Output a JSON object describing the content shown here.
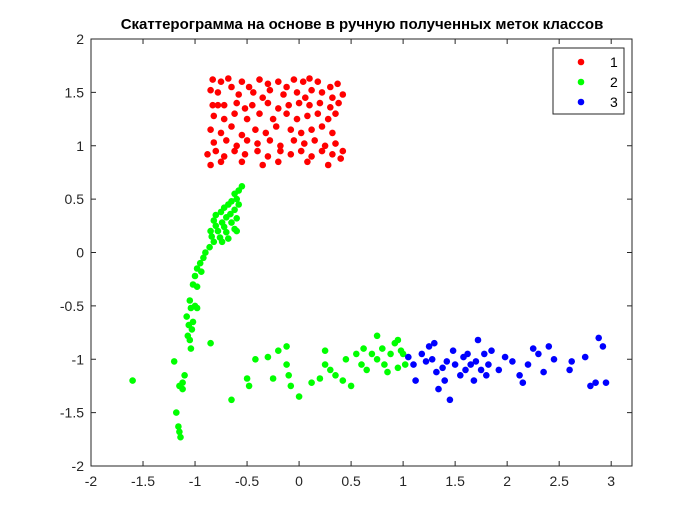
{
  "chart_data": {
    "type": "scatter",
    "title": "Скаттерограмма на основе в ручную полученных меток классов",
    "xlabel": "",
    "ylabel": "",
    "xlim": [
      -2,
      3.2
    ],
    "ylim": [
      -2,
      2
    ],
    "xticks": [
      -2,
      -1.5,
      -1,
      -0.5,
      0,
      0.5,
      1,
      1.5,
      2,
      2.5,
      3
    ],
    "xtick_labels": [
      "-2",
      "-1.5",
      "-1",
      "-0.5",
      "0",
      "0.5",
      "1",
      "1.5",
      "2",
      "2.5",
      "3"
    ],
    "yticks": [
      -2,
      -1.5,
      -1,
      -0.5,
      0,
      0.5,
      1,
      1.5,
      2
    ],
    "ytick_labels": [
      "-2",
      "-1.5",
      "-1",
      "-0.5",
      "0",
      "0.5",
      "1",
      "1.5",
      "2"
    ],
    "grid": false,
    "legend_position": "top-right",
    "series": [
      {
        "name": "1",
        "color": "#ff0000",
        "points": [
          [
            -0.83,
            1.62
          ],
          [
            -0.75,
            1.6
          ],
          [
            -0.68,
            1.63
          ],
          [
            -0.55,
            1.6
          ],
          [
            -0.48,
            1.55
          ],
          [
            -0.38,
            1.62
          ],
          [
            -0.3,
            1.58
          ],
          [
            -0.2,
            1.6
          ],
          [
            -0.12,
            1.55
          ],
          [
            -0.05,
            1.62
          ],
          [
            0.04,
            1.6
          ],
          [
            0.1,
            1.63
          ],
          [
            0.18,
            1.6
          ],
          [
            0.3,
            1.55
          ],
          [
            0.37,
            1.58
          ],
          [
            -0.85,
            1.52
          ],
          [
            -0.78,
            1.5
          ],
          [
            -0.65,
            1.55
          ],
          [
            -0.58,
            1.48
          ],
          [
            -0.44,
            1.5
          ],
          [
            -0.35,
            1.45
          ],
          [
            -0.28,
            1.52
          ],
          [
            -0.15,
            1.48
          ],
          [
            -0.02,
            1.5
          ],
          [
            0.06,
            1.45
          ],
          [
            0.12,
            1.52
          ],
          [
            0.22,
            1.5
          ],
          [
            0.32,
            1.45
          ],
          [
            0.42,
            1.48
          ],
          [
            -0.83,
            1.38
          ],
          [
            -0.78,
            1.38
          ],
          [
            -0.72,
            1.38
          ],
          [
            -0.6,
            1.4
          ],
          [
            -0.52,
            1.35
          ],
          [
            -0.45,
            1.38
          ],
          [
            -0.3,
            1.4
          ],
          [
            -0.2,
            1.35
          ],
          [
            -0.1,
            1.38
          ],
          [
            0.0,
            1.4
          ],
          [
            0.1,
            1.38
          ],
          [
            0.2,
            1.4
          ],
          [
            0.3,
            1.36
          ],
          [
            0.38,
            1.4
          ],
          [
            -0.82,
            1.28
          ],
          [
            -0.72,
            1.25
          ],
          [
            -0.62,
            1.3
          ],
          [
            -0.5,
            1.25
          ],
          [
            -0.38,
            1.3
          ],
          [
            -0.25,
            1.25
          ],
          [
            -0.12,
            1.3
          ],
          [
            -0.02,
            1.25
          ],
          [
            0.08,
            1.28
          ],
          [
            0.18,
            1.3
          ],
          [
            0.28,
            1.25
          ],
          [
            0.35,
            1.3
          ],
          [
            -0.85,
            1.15
          ],
          [
            -0.75,
            1.12
          ],
          [
            -0.65,
            1.18
          ],
          [
            -0.55,
            1.1
          ],
          [
            -0.42,
            1.15
          ],
          [
            -0.32,
            1.12
          ],
          [
            -0.22,
            1.18
          ],
          [
            -0.08,
            1.15
          ],
          [
            0.02,
            1.12
          ],
          [
            0.12,
            1.15
          ],
          [
            0.22,
            1.18
          ],
          [
            0.32,
            1.12
          ],
          [
            -0.82,
            1.03
          ],
          [
            -0.7,
            1.05
          ],
          [
            -0.6,
            1.0
          ],
          [
            -0.5,
            1.05
          ],
          [
            -0.4,
            1.02
          ],
          [
            -0.28,
            1.05
          ],
          [
            -0.18,
            1.0
          ],
          [
            -0.05,
            1.05
          ],
          [
            0.05,
            1.02
          ],
          [
            0.15,
            1.05
          ],
          [
            0.25,
            1.0
          ],
          [
            0.35,
            1.02
          ],
          [
            -0.88,
            0.92
          ],
          [
            -0.8,
            0.95
          ],
          [
            -0.72,
            0.9
          ],
          [
            -0.62,
            0.95
          ],
          [
            -0.52,
            0.92
          ],
          [
            -0.4,
            0.95
          ],
          [
            -0.3,
            0.9
          ],
          [
            -0.18,
            0.95
          ],
          [
            -0.08,
            0.92
          ],
          [
            0.02,
            0.95
          ],
          [
            0.12,
            0.9
          ],
          [
            0.22,
            0.95
          ],
          [
            0.32,
            0.92
          ],
          [
            0.42,
            0.95
          ],
          [
            -0.85,
            0.82
          ],
          [
            -0.75,
            0.85
          ],
          [
            -0.55,
            0.85
          ],
          [
            -0.35,
            0.82
          ],
          [
            -0.2,
            0.85
          ],
          [
            0.08,
            0.85
          ],
          [
            0.28,
            0.82
          ],
          [
            0.4,
            0.88
          ]
        ]
      },
      {
        "name": "2",
        "color": "#00ff00",
        "points": [
          [
            -0.55,
            0.62
          ],
          [
            -0.58,
            0.58
          ],
          [
            -0.62,
            0.55
          ],
          [
            -0.6,
            0.5
          ],
          [
            -0.65,
            0.48
          ],
          [
            -0.68,
            0.45
          ],
          [
            -0.58,
            0.45
          ],
          [
            -0.72,
            0.42
          ],
          [
            -0.62,
            0.4
          ],
          [
            -0.75,
            0.38
          ],
          [
            -0.66,
            0.36
          ],
          [
            -0.8,
            0.35
          ],
          [
            -0.7,
            0.33
          ],
          [
            -0.6,
            0.32
          ],
          [
            -0.82,
            0.3
          ],
          [
            -0.74,
            0.28
          ],
          [
            -0.65,
            0.28
          ],
          [
            -0.8,
            0.25
          ],
          [
            -0.72,
            0.24
          ],
          [
            -0.62,
            0.22
          ],
          [
            -0.85,
            0.2
          ],
          [
            -0.78,
            0.2
          ],
          [
            -0.7,
            0.19
          ],
          [
            -0.6,
            0.2
          ],
          [
            -0.84,
            0.15
          ],
          [
            -0.76,
            0.14
          ],
          [
            -0.68,
            0.13
          ],
          [
            -0.82,
            0.1
          ],
          [
            -0.74,
            0.1
          ],
          [
            -0.86,
            0.05
          ],
          [
            -0.9,
            0.0
          ],
          [
            -0.92,
            -0.05
          ],
          [
            -0.95,
            -0.1
          ],
          [
            -0.98,
            -0.15
          ],
          [
            -0.94,
            -0.18
          ],
          [
            -1.0,
            -0.22
          ],
          [
            -1.02,
            -0.3
          ],
          [
            -0.98,
            -0.32
          ],
          [
            -1.05,
            -0.45
          ],
          [
            -1.0,
            -0.5
          ],
          [
            -1.04,
            -0.52
          ],
          [
            -0.98,
            -0.52
          ],
          [
            -1.08,
            -0.6
          ],
          [
            -1.02,
            -0.65
          ],
          [
            -1.06,
            -0.68
          ],
          [
            -1.03,
            -0.72
          ],
          [
            -1.07,
            -0.78
          ],
          [
            -1.05,
            -0.82
          ],
          [
            -1.04,
            -0.9
          ],
          [
            -0.85,
            -0.85
          ],
          [
            -1.2,
            -1.02
          ],
          [
            -1.1,
            -1.15
          ],
          [
            -1.12,
            -1.22
          ],
          [
            -1.15,
            -1.25
          ],
          [
            -1.12,
            -1.28
          ],
          [
            -1.6,
            -1.2
          ],
          [
            -1.18,
            -1.5
          ],
          [
            -1.16,
            -1.63
          ],
          [
            -1.15,
            -1.68
          ],
          [
            -1.14,
            -1.73
          ],
          [
            -0.65,
            -1.38
          ],
          [
            -0.5,
            -1.18
          ],
          [
            -0.48,
            -1.25
          ],
          [
            -0.42,
            -1.0
          ],
          [
            -0.3,
            -0.98
          ],
          [
            -0.25,
            -1.18
          ],
          [
            -0.2,
            -0.92
          ],
          [
            -0.12,
            -0.88
          ],
          [
            -0.12,
            -1.05
          ],
          [
            -0.1,
            -1.15
          ],
          [
            -0.08,
            -1.25
          ],
          [
            0.0,
            -1.35
          ],
          [
            0.12,
            -1.22
          ],
          [
            0.2,
            -1.18
          ],
          [
            0.25,
            -1.05
          ],
          [
            0.25,
            -0.92
          ],
          [
            0.3,
            -1.1
          ],
          [
            0.35,
            -1.15
          ],
          [
            0.42,
            -1.2
          ],
          [
            0.45,
            -1.0
          ],
          [
            0.5,
            -1.25
          ],
          [
            0.55,
            -0.95
          ],
          [
            0.6,
            -1.05
          ],
          [
            0.62,
            -0.9
          ],
          [
            0.65,
            -1.1
          ],
          [
            0.7,
            -0.95
          ],
          [
            0.75,
            -1.0
          ],
          [
            0.75,
            -0.78
          ],
          [
            0.8,
            -0.9
          ],
          [
            0.82,
            -1.05
          ],
          [
            0.85,
            -1.12
          ],
          [
            0.88,
            -0.95
          ],
          [
            0.92,
            -0.85
          ],
          [
            0.95,
            -1.08
          ],
          [
            0.95,
            -0.82
          ],
          [
            0.98,
            -0.92
          ],
          [
            1.0,
            -0.95
          ],
          [
            1.02,
            -1.05
          ]
        ]
      },
      {
        "name": "3",
        "color": "#0000ff",
        "points": [
          [
            1.05,
            -0.98
          ],
          [
            1.1,
            -1.05
          ],
          [
            1.12,
            -1.2
          ],
          [
            1.18,
            -0.95
          ],
          [
            1.22,
            -1.02
          ],
          [
            1.25,
            -0.88
          ],
          [
            1.28,
            -1.0
          ],
          [
            1.3,
            -0.85
          ],
          [
            1.32,
            -1.12
          ],
          [
            1.34,
            -1.28
          ],
          [
            1.38,
            -1.08
          ],
          [
            1.4,
            -1.2
          ],
          [
            1.42,
            -1.02
          ],
          [
            1.45,
            -1.38
          ],
          [
            1.48,
            -0.92
          ],
          [
            1.5,
            -1.05
          ],
          [
            1.55,
            -1.15
          ],
          [
            1.58,
            -0.98
          ],
          [
            1.6,
            -1.1
          ],
          [
            1.62,
            -0.95
          ],
          [
            1.65,
            -1.05
          ],
          [
            1.68,
            -1.2
          ],
          [
            1.7,
            -1.02
          ],
          [
            1.72,
            -0.82
          ],
          [
            1.75,
            -1.1
          ],
          [
            1.78,
            -0.95
          ],
          [
            1.8,
            -1.15
          ],
          [
            1.82,
            -1.05
          ],
          [
            1.85,
            -0.92
          ],
          [
            1.92,
            -1.1
          ],
          [
            1.98,
            -0.98
          ],
          [
            2.05,
            -1.02
          ],
          [
            2.12,
            -1.15
          ],
          [
            2.15,
            -1.22
          ],
          [
            2.2,
            -1.05
          ],
          [
            2.25,
            -0.9
          ],
          [
            2.3,
            -0.95
          ],
          [
            2.35,
            -1.12
          ],
          [
            2.4,
            -0.88
          ],
          [
            2.45,
            -1.0
          ],
          [
            2.6,
            -1.1
          ],
          [
            2.62,
            -1.02
          ],
          [
            2.75,
            -0.98
          ],
          [
            2.8,
            -1.25
          ],
          [
            2.85,
            -1.22
          ],
          [
            2.88,
            -0.8
          ],
          [
            2.92,
            -0.88
          ],
          [
            2.95,
            -1.22
          ]
        ]
      }
    ]
  }
}
